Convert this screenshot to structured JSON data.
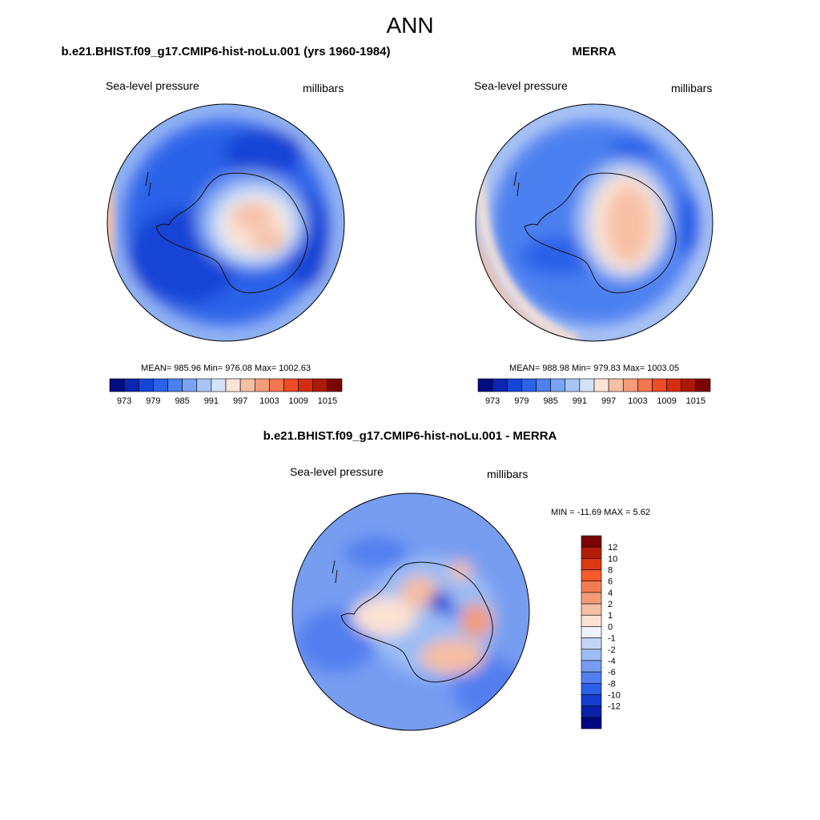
{
  "title": "ANN",
  "panels": [
    {
      "title": "b.e21.BHIST.f09_g17.CMIP6-hist-noLu.001 (yrs 1960-1984)",
      "left_label": "Sea-level pressure",
      "right_label": "millibars",
      "stats": "MEAN= 985.96  Min= 976.08  Max= 1002.63"
    },
    {
      "title": "MERRA",
      "left_label": "Sea-level pressure",
      "right_label": "millibars",
      "stats": "MEAN= 988.98  Min= 979.83  Max= 1003.05"
    },
    {
      "title": "b.e21.BHIST.f09_g17.CMIP6-hist-noLu.001 - MERRA",
      "left_label": "Sea-level pressure",
      "right_label": "millibars",
      "stats": "MIN = -11.69 MAX =   5.62"
    }
  ],
  "colors": {
    "slp_palette": [
      "#000d80",
      "#0a26b0",
      "#1645d6",
      "#2c62e8",
      "#4c80f0",
      "#7aa3f3",
      "#a9c5f5",
      "#d3e2f7",
      "#fbe3d5",
      "#f6c0a5",
      "#f49d7c",
      "#f2764f",
      "#ee4b26",
      "#d52d12",
      "#ab1a08",
      "#7b0303"
    ],
    "diff_palette": [
      "#7b0303",
      "#b31d08",
      "#de3810",
      "#f55a2a",
      "#f37c55",
      "#f39b7a",
      "#f6bea2",
      "#fbe2d3",
      "#eef3fb",
      "#c3d6f6",
      "#9bbcf4",
      "#779df1",
      "#527ff0",
      "#2b5ee9",
      "#163dd1",
      "#0a20a8",
      "#000a7e"
    ],
    "coast": "#111111",
    "frame": "#000000"
  },
  "chart_data": [
    {
      "type": "heatmap",
      "title": "b.e21.BHIST.f09_g17.CMIP6-hist-noLu.001 (yrs 1960-1984)",
      "variable": "Sea-level pressure",
      "units": "millibars",
      "projection": "south-polar stereographic",
      "contour_levels": [
        973,
        976,
        979,
        982,
        985,
        988,
        991,
        994,
        997,
        1000,
        1003,
        1006,
        1009,
        1012,
        1015
      ],
      "colorbar_labels": [
        "973",
        "979",
        "985",
        "991",
        "997",
        "1003",
        "1009",
        "1015"
      ],
      "mean": 985.96,
      "min": 976.08,
      "max": 1002.63
    },
    {
      "type": "heatmap",
      "title": "MERRA",
      "variable": "Sea-level pressure",
      "units": "millibars",
      "projection": "south-polar stereographic",
      "contour_levels": [
        973,
        976,
        979,
        982,
        985,
        988,
        991,
        994,
        997,
        1000,
        1003,
        1006,
        1009,
        1012,
        1015
      ],
      "colorbar_labels": [
        "973",
        "979",
        "985",
        "991",
        "997",
        "1003",
        "1009",
        "1015"
      ],
      "mean": 988.98,
      "min": 979.83,
      "max": 1003.05
    },
    {
      "type": "heatmap",
      "title": "b.e21.BHIST.f09_g17.CMIP6-hist-noLu.001 - MERRA",
      "variable": "Sea-level pressure",
      "units": "millibars",
      "projection": "south-polar stereographic",
      "contour_levels": [
        12,
        10,
        8,
        6,
        4,
        2,
        1,
        0,
        -1,
        -2,
        -4,
        -6,
        -8,
        -10,
        -12
      ],
      "colorbar_labels": [
        "12",
        "10",
        "8",
        "6",
        "4",
        "2",
        "1",
        "0",
        "-1",
        "-2",
        "-4",
        "-6",
        "-8",
        "-10",
        "-12"
      ],
      "min": -11.69,
      "max": 5.62
    }
  ]
}
